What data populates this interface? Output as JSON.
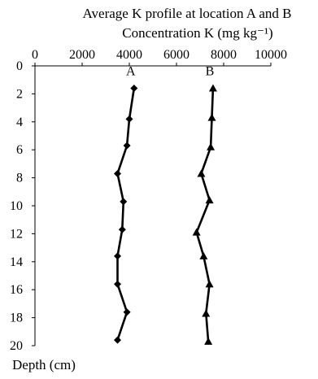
{
  "chart_data": {
    "type": "line",
    "title": "Average K profile at location A and B",
    "subtitle": "Concentration K (mg kg⁻¹)",
    "xlabel": "Concentration K (mg kg⁻¹)",
    "ylabel": "Depth (cm)",
    "xlim": [
      0,
      10000
    ],
    "ylim": [
      0,
      20
    ],
    "x_axis_position": "top",
    "y_inverted": true,
    "grid": false,
    "x_ticks": [
      0,
      2000,
      4000,
      6000,
      8000,
      10000
    ],
    "y_ticks": [
      0,
      2,
      4,
      6,
      8,
      10,
      12,
      14,
      16,
      18,
      20
    ],
    "series": [
      {
        "name": "A",
        "marker": "diamond",
        "color": "#000000",
        "points": [
          {
            "x": 4200,
            "y": 1.6
          },
          {
            "x": 4000,
            "y": 3.8
          },
          {
            "x": 3900,
            "y": 5.7
          },
          {
            "x": 3500,
            "y": 7.7
          },
          {
            "x": 3750,
            "y": 9.7
          },
          {
            "x": 3700,
            "y": 11.7
          },
          {
            "x": 3500,
            "y": 13.6
          },
          {
            "x": 3500,
            "y": 15.6
          },
          {
            "x": 3900,
            "y": 17.6
          },
          {
            "x": 3500,
            "y": 19.6
          }
        ]
      },
      {
        "name": "B",
        "marker": "triangle",
        "color": "#000000",
        "points": [
          {
            "x": 7550,
            "y": 1.6
          },
          {
            "x": 7500,
            "y": 3.7
          },
          {
            "x": 7450,
            "y": 5.8
          },
          {
            "x": 7050,
            "y": 7.7
          },
          {
            "x": 7400,
            "y": 9.6
          },
          {
            "x": 6850,
            "y": 11.9
          },
          {
            "x": 7150,
            "y": 13.6
          },
          {
            "x": 7400,
            "y": 15.6
          },
          {
            "x": 7250,
            "y": 17.7
          },
          {
            "x": 7350,
            "y": 19.7
          }
        ]
      }
    ]
  }
}
